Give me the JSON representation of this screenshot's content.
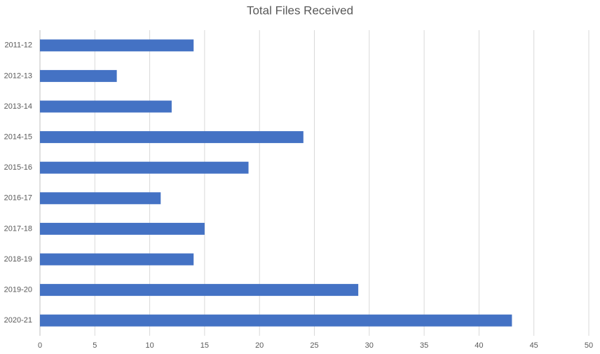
{
  "chart_data": {
    "type": "bar",
    "title": "Total Files Received",
    "categories": [
      "2011-12",
      "2012-13",
      "2013-14",
      "2014-15",
      "2015-16",
      "2016-17",
      "2017-18",
      "2018-19",
      "2019-20",
      "2020-21"
    ],
    "values": [
      14,
      7,
      12,
      24,
      19,
      11,
      15,
      14,
      29,
      43
    ],
    "color": "#4472c4",
    "xlim": [
      0,
      50
    ],
    "xticks": [
      0,
      5,
      10,
      15,
      20,
      25,
      30,
      35,
      40,
      45,
      50
    ],
    "grid": true
  }
}
